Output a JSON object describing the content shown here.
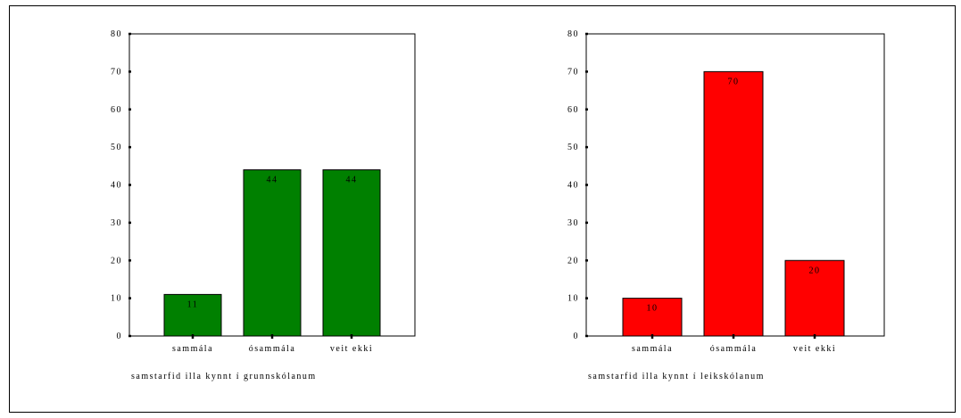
{
  "chart_data": [
    {
      "type": "bar",
      "title": "",
      "xlabel": "samstarfid illa kynnt í grunnskólanum",
      "ylabel": "",
      "categories": [
        "sammála",
        "ósammála",
        "veit ekki"
      ],
      "values": [
        11,
        44,
        44
      ],
      "data_labels": [
        "11",
        "44",
        "44"
      ],
      "yticks": [
        "0",
        "10",
        "20",
        "30",
        "40",
        "50",
        "60",
        "70",
        "80"
      ],
      "ylim": [
        0,
        80
      ],
      "bar_color": "#008000",
      "grid": false
    },
    {
      "type": "bar",
      "title": "",
      "xlabel": "samstarfid illa kynnt í leikskólanum",
      "ylabel": "",
      "categories": [
        "sammála",
        "ósammála",
        "veit ekki"
      ],
      "values": [
        10,
        70,
        20
      ],
      "data_labels": [
        "10",
        "70",
        "20"
      ],
      "yticks": [
        "0",
        "10",
        "20",
        "30",
        "40",
        "50",
        "60",
        "70",
        "80"
      ],
      "ylim": [
        0,
        80
      ],
      "bar_color": "#ff0000",
      "grid": false
    }
  ]
}
